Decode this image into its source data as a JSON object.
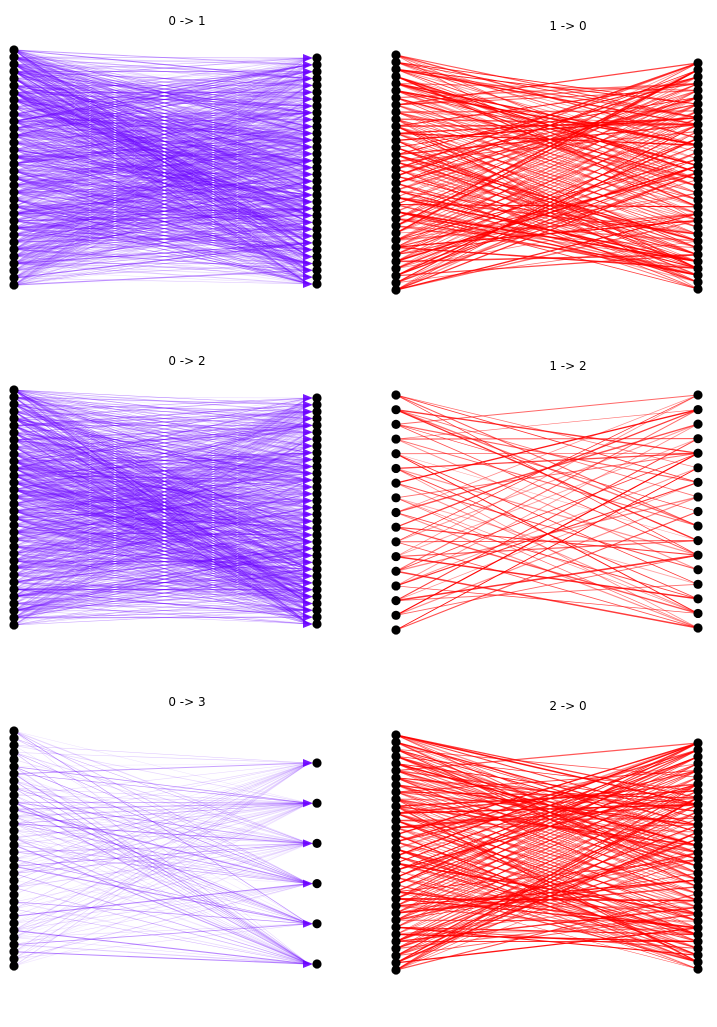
{
  "figure": {
    "panels": [
      {
        "id": "p01",
        "title": "0 -> 1",
        "left_nodes": 34,
        "right_nodes": 34,
        "pattern": "fan",
        "weight": "dense",
        "color": "#6a00ff"
      },
      {
        "id": "p10",
        "title": "1 -> 0",
        "left_nodes": 34,
        "right_nodes": 34,
        "pattern": "cross",
        "weight": "dense",
        "color": "#ff0000"
      },
      {
        "id": "p02",
        "title": "0 -> 2",
        "left_nodes": 34,
        "right_nodes": 34,
        "pattern": "fan",
        "weight": "dense",
        "color": "#6a00ff"
      },
      {
        "id": "p12",
        "title": "1 -> 2",
        "left_nodes": 17,
        "right_nodes": 17,
        "pattern": "cross",
        "weight": "sparse",
        "color": "#ff0000"
      },
      {
        "id": "p03",
        "title": "0 -> 3",
        "left_nodes": 34,
        "right_nodes": 6,
        "pattern": "fan",
        "weight": "dense",
        "color": "#6a00ff"
      },
      {
        "id": "p20",
        "title": "2 -> 0",
        "left_nodes": 34,
        "right_nodes": 34,
        "pattern": "cross",
        "weight": "dense",
        "color": "#ff0000"
      }
    ],
    "node_color": "#000000"
  }
}
